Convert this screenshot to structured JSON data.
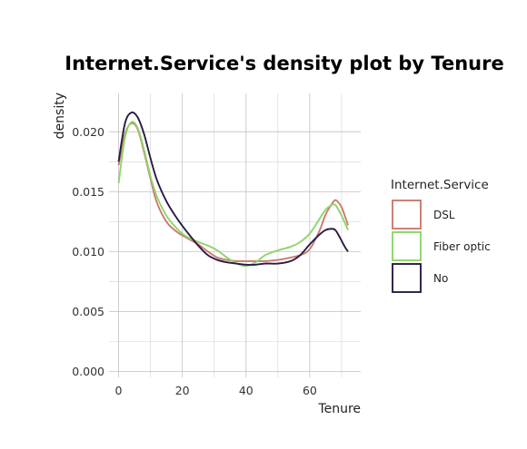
{
  "chart_data": {
    "type": "line",
    "title": "Internet.Service's density plot by Tenure",
    "xlabel": "Tenure",
    "ylabel": "density",
    "xlim": [
      -3,
      76
    ],
    "ylim": [
      -0.0005,
      0.0232
    ],
    "xticks": [
      0,
      20,
      40,
      60
    ],
    "xtick_labels": [
      "0",
      "20",
      "40",
      "60"
    ],
    "yticks": [
      0,
      0.005,
      0.01,
      0.015,
      0.02
    ],
    "ytick_labels": [
      "0.000",
      "0.005",
      "0.010",
      "0.015",
      "0.020"
    ],
    "grid": true,
    "legend": {
      "title": "Internet.Service",
      "position": "right"
    },
    "series": [
      {
        "name": "DSL",
        "color": "#c97b6e",
        "x": [
          0,
          2,
          4,
          6,
          8,
          10,
          12,
          15,
          18,
          21,
          25,
          28,
          31,
          34,
          37,
          40,
          43,
          46,
          50,
          54,
          57,
          60,
          63,
          65,
          67,
          68,
          69,
          70,
          71,
          72
        ],
        "y": [
          0.0172,
          0.0198,
          0.0207,
          0.0202,
          0.0183,
          0.0161,
          0.0141,
          0.0125,
          0.0117,
          0.0112,
          0.0106,
          0.01,
          0.0095,
          0.0093,
          0.0092,
          0.0092,
          0.0092,
          0.0092,
          0.0093,
          0.0095,
          0.0097,
          0.0102,
          0.0117,
          0.0131,
          0.014,
          0.0143,
          0.0141,
          0.0137,
          0.013,
          0.0122
        ]
      },
      {
        "name": "Fiber optic",
        "color": "#8fd46a",
        "x": [
          0,
          2,
          4,
          6,
          8,
          10,
          12,
          15,
          18,
          21,
          25,
          28,
          31,
          34,
          37,
          40,
          43,
          46,
          50,
          54,
          57,
          60,
          63,
          65,
          67,
          68,
          69,
          70,
          71,
          72
        ],
        "y": [
          0.0157,
          0.0195,
          0.0208,
          0.0203,
          0.0185,
          0.0163,
          0.0146,
          0.013,
          0.012,
          0.0113,
          0.0108,
          0.0105,
          0.0101,
          0.0095,
          0.009,
          0.0088,
          0.0091,
          0.0097,
          0.0101,
          0.0104,
          0.0108,
          0.0115,
          0.0127,
          0.0135,
          0.0139,
          0.0139,
          0.0135,
          0.013,
          0.0124,
          0.0118
        ]
      },
      {
        "name": "No",
        "color": "#2a1a45",
        "x": [
          0,
          2,
          4,
          6,
          8,
          10,
          12,
          15,
          18,
          21,
          25,
          28,
          31,
          34,
          37,
          40,
          43,
          46,
          50,
          54,
          57,
          60,
          63,
          65,
          67,
          68,
          69,
          70,
          71,
          72
        ],
        "y": [
          0.0175,
          0.0207,
          0.0216,
          0.0212,
          0.0198,
          0.0178,
          0.016,
          0.0142,
          0.0129,
          0.0118,
          0.0105,
          0.0097,
          0.0093,
          0.0091,
          0.009,
          0.0089,
          0.0089,
          0.009,
          0.009,
          0.0092,
          0.0097,
          0.0106,
          0.0114,
          0.0118,
          0.0119,
          0.0118,
          0.0114,
          0.0109,
          0.0104,
          0.01
        ]
      }
    ]
  }
}
